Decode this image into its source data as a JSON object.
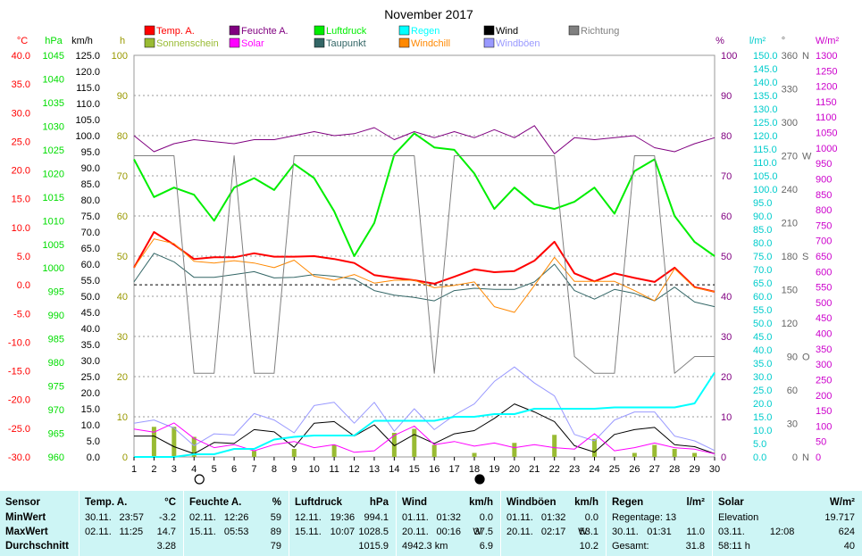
{
  "chart_data": {
    "type": "line",
    "title": "November 2017",
    "x": [
      1,
      2,
      3,
      4,
      5,
      6,
      7,
      8,
      9,
      10,
      11,
      12,
      13,
      14,
      15,
      16,
      17,
      18,
      19,
      20,
      21,
      22,
      23,
      24,
      25,
      26,
      27,
      28,
      29,
      30
    ],
    "axes": {
      "temp": {
        "unit": "°C",
        "color": "#ff0000",
        "range": [
          -30,
          40
        ],
        "step": 5
      },
      "pressure": {
        "unit": "hPa",
        "color": "#00dd00",
        "range": [
          960,
          1045
        ],
        "step": 5
      },
      "wind": {
        "unit": "km/h",
        "color": "#000000",
        "range": [
          0,
          125
        ],
        "step": 5
      },
      "hours": {
        "unit": "h",
        "color": "#999900",
        "range": [
          0,
          100
        ],
        "step": 10
      },
      "humidity": {
        "unit": "%",
        "color": "#800080",
        "range": [
          0,
          100
        ],
        "step": 10
      },
      "rain": {
        "unit": "l/m²",
        "color": "#00cccc",
        "range": [
          0,
          150
        ],
        "step": 5
      },
      "direction": {
        "unit": "°",
        "color": "#666666",
        "ticks": [
          0,
          30,
          60,
          90,
          120,
          150,
          180,
          210,
          240,
          270,
          300,
          330,
          360
        ],
        "labels": {
          "0": "N",
          "90": "O",
          "180": "S",
          "270": "W",
          "360": "N"
        }
      },
      "solar": {
        "unit": "W/m²",
        "color": "#cc00cc",
        "range": [
          0,
          1300
        ],
        "step": 50
      }
    },
    "legend": [
      {
        "name": "Temp. A.",
        "color": "#ff0000"
      },
      {
        "name": "Feuchte A.",
        "color": "#800080"
      },
      {
        "name": "Luftdruck",
        "color": "#00ee00"
      },
      {
        "name": "Regen",
        "color": "#00ffff"
      },
      {
        "name": "Wind",
        "color": "#000000"
      },
      {
        "name": "Richtung",
        "color": "#808080"
      },
      {
        "name": "Sonnenschein",
        "color": "#99bb33"
      },
      {
        "name": "Solar",
        "color": "#ff00ff"
      },
      {
        "name": "Taupunkt",
        "color": "#336666"
      },
      {
        "name": "Windchill",
        "color": "#ff8800"
      },
      {
        "name": "Windböen",
        "color": "#9999ff"
      }
    ],
    "series": [
      {
        "name": "Temp. A.",
        "axis": "temp",
        "color": "#ff0000",
        "width": 2,
        "values": [
          3.0,
          9.2,
          7.0,
          4.5,
          4.8,
          4.8,
          5.5,
          4.9,
          4.9,
          5.0,
          4.5,
          3.8,
          1.7,
          1.2,
          0.8,
          0.2,
          1.4,
          2.7,
          2.2,
          2.4,
          4.2,
          7.5,
          2.0,
          0.6,
          2.0,
          1.2,
          0.5,
          3.0,
          -0.4,
          -1.2
        ]
      },
      {
        "name": "Feuchte A.",
        "axis": "humidity",
        "color": "#800080",
        "width": 1,
        "values": [
          80,
          76,
          78,
          79,
          78.5,
          78,
          79,
          79,
          80,
          81,
          80,
          80.5,
          82,
          79,
          81,
          79.5,
          81,
          79.5,
          81.5,
          79.5,
          82.5,
          75.5,
          79.5,
          79,
          79.5,
          80,
          77,
          76,
          78,
          79.5
        ]
      },
      {
        "name": "Luftdruck",
        "axis": "pressure",
        "color": "#00ee00",
        "width": 2,
        "values": [
          1023,
          1015,
          1017,
          1015.5,
          1010,
          1017,
          1019,
          1016.5,
          1022,
          1019,
          1012,
          1002.5,
          1009.5,
          1024,
          1028.5,
          1025.5,
          1025,
          1020,
          1012.5,
          1017,
          1013.5,
          1012.5,
          1014,
          1017,
          1011.5,
          1020.5,
          1023,
          1011,
          1005.5,
          1002.5
        ]
      },
      {
        "name": "Taupunkt",
        "axis": "temp",
        "color": "#336666",
        "width": 1,
        "values": [
          0.5,
          5.5,
          4.0,
          1.3,
          1.3,
          1.8,
          2.3,
          1.2,
          1.3,
          1.8,
          1.5,
          1.0,
          -1.0,
          -1.8,
          -2.2,
          -2.8,
          -1.0,
          -0.6,
          -0.8,
          -0.8,
          0.5,
          3.6,
          -1.0,
          -2.5,
          -0.8,
          -1.5,
          -2.8,
          -0.4,
          -3.0,
          -3.8
        ]
      },
      {
        "name": "Windchill",
        "axis": "temp",
        "color": "#ff8800",
        "width": 1,
        "values": [
          3.0,
          8.0,
          7.2,
          4.1,
          3.8,
          4.2,
          3.8,
          3.0,
          4.3,
          1.5,
          0.8,
          1.8,
          0.3,
          0.8,
          0.8,
          -0.5,
          -0.1,
          0.5,
          -3.8,
          -4.8,
          -0.1,
          4.8,
          0.6,
          0.6,
          0.6,
          -1.0,
          -2.8,
          2.8,
          -0.5,
          -1.2
        ]
      },
      {
        "name": "Wind",
        "axis": "wind",
        "color": "#000000",
        "width": 1,
        "values": [
          6.5,
          6.5,
          3.2,
          1.0,
          4.5,
          4.2,
          8.5,
          7.8,
          3.0,
          10.5,
          11.0,
          6.5,
          10.0,
          3.5,
          7.0,
          4.2,
          7.2,
          8.2,
          12.0,
          16.5,
          14.0,
          11.0,
          3.5,
          1.5,
          7.0,
          8.5,
          9.2,
          3.8,
          3.2,
          1.0
        ]
      },
      {
        "name": "Windböen",
        "axis": "wind",
        "color": "#9999ff",
        "width": 1,
        "values": [
          10.5,
          11.5,
          9.0,
          3.5,
          7.2,
          6.8,
          13.5,
          11.5,
          7.5,
          16.0,
          17.0,
          10.5,
          17.0,
          8.0,
          15.0,
          8.5,
          13.0,
          16.5,
          23.5,
          28.0,
          23.0,
          19.0,
          7.0,
          5.0,
          11.5,
          14.0,
          14.0,
          6.5,
          5.0,
          2.0
        ]
      },
      {
        "name": "Solar",
        "axis": "solar",
        "color": "#ff00ff",
        "width": 1,
        "values": [
          90,
          80,
          110,
          60,
          30,
          40,
          20,
          40,
          50,
          30,
          40,
          15,
          20,
          70,
          100,
          40,
          50,
          35,
          45,
          30,
          40,
          30,
          25,
          75,
          20,
          30,
          45,
          30,
          25,
          10
        ]
      },
      {
        "name": "Regen",
        "axis": "rain",
        "color": "#00ffff",
        "width": 2,
        "values": [
          0,
          0,
          0,
          1,
          1,
          3,
          3,
          6.5,
          7.5,
          8,
          8,
          8,
          13.5,
          13.5,
          13.5,
          13.5,
          15,
          15,
          16,
          16,
          18,
          18,
          18,
          18,
          18.5,
          18.5,
          18.5,
          18.5,
          20,
          31.5
        ]
      },
      {
        "name": "Richtung",
        "axis": "direction",
        "color": "#808080",
        "width": 1,
        "values": [
          270,
          270,
          270,
          75,
          75,
          270,
          75,
          75,
          270,
          270,
          270,
          270,
          270,
          270,
          270,
          75,
          270,
          270,
          270,
          270,
          270,
          270,
          90,
          75,
          75,
          270,
          270,
          75,
          90,
          90
        ]
      }
    ],
    "sunshine_hours": [
      0,
      7.5,
      7.5,
      5.0,
      0,
      0,
      1.5,
      0,
      2.0,
      0,
      3.0,
      0,
      0,
      6.0,
      7.0,
      3.0,
      0,
      1.0,
      0,
      3.5,
      0,
      5.5,
      0,
      4.5,
      0,
      1.0,
      3.0,
      2.0,
      1.0,
      0
    ],
    "reference_line_temp": 0,
    "moon_markers": [
      {
        "day": 4,
        "phase": "full"
      },
      {
        "day": 18,
        "phase": "new"
      }
    ]
  },
  "stats": {
    "columns": [
      {
        "head": "Sensor",
        "unit": "",
        "rows": [
          "MinWert",
          "MaxWert",
          "Durchschnitt"
        ]
      },
      {
        "head": "Temp. A.",
        "unit": "°C",
        "rows": [
          [
            "30.11.",
            "23:57",
            "",
            "-3.2"
          ],
          [
            "02.11.",
            "11:25",
            "",
            "14.7"
          ],
          [
            "",
            "",
            "",
            "3.28"
          ]
        ]
      },
      {
        "head": "Feuchte A.",
        "unit": "%",
        "rows": [
          [
            "02.11.",
            "12:26",
            "",
            "59"
          ],
          [
            "15.11.",
            "05:53",
            "",
            "89"
          ],
          [
            "",
            "",
            "",
            "79"
          ]
        ]
      },
      {
        "head": "Luftdruck",
        "unit": "hPa",
        "rows": [
          [
            "12.11.",
            "19:36",
            "",
            "994.1"
          ],
          [
            "15.11.",
            "10:07",
            "",
            "1028.5"
          ],
          [
            "",
            "",
            "",
            "1015.9"
          ]
        ]
      },
      {
        "head": "Wind",
        "unit": "km/h",
        "rows": [
          [
            "01.11.",
            "01:32",
            "",
            "0.0"
          ],
          [
            "20.11.",
            "00:16",
            "W",
            "37.5"
          ],
          [
            "4942.3 km",
            "",
            "",
            "6.9"
          ]
        ]
      },
      {
        "head": "Windböen",
        "unit": "km/h",
        "rows": [
          [
            "01.11.",
            "01:32",
            "",
            "0.0"
          ],
          [
            "20.11.",
            "02:17",
            "W",
            "53.1"
          ],
          [
            "",
            "",
            "",
            "10.2"
          ]
        ]
      },
      {
        "head": "Regen",
        "unit": "l/m²",
        "rows": [
          [
            "Regentage: 13",
            "",
            "",
            ""
          ],
          [
            "30.11.",
            "01:31",
            "",
            "11.0"
          ],
          [
            "Gesamt:",
            "",
            "",
            "31.8"
          ]
        ]
      },
      {
        "head": "Solar",
        "unit": "W/m²",
        "rows": [
          [
            "Elevation",
            "",
            "",
            "19.717"
          ],
          [
            "03.11.",
            "12:08",
            "",
            "624"
          ],
          [
            "58:11 h",
            "",
            "",
            "40"
          ]
        ]
      }
    ]
  }
}
